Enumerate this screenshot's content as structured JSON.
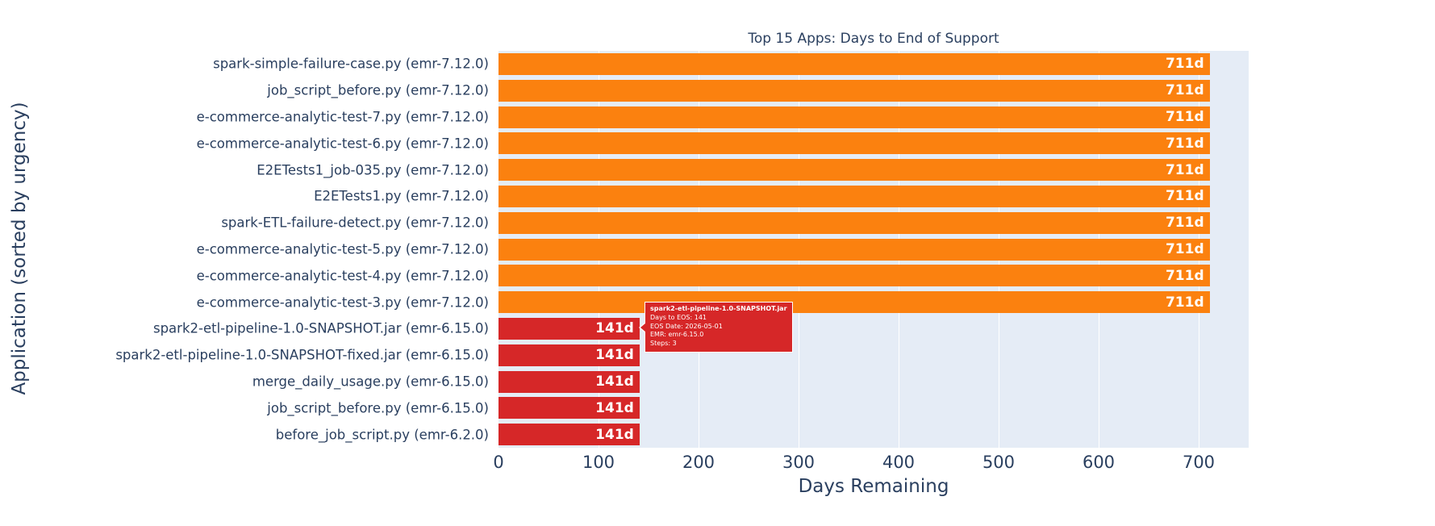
{
  "chart_data": {
    "type": "bar",
    "orientation": "horizontal",
    "title": "Top 15 Apps: Days to End of Support",
    "xlabel": "Days Remaining",
    "ylabel": "Application (sorted by urgency)",
    "xlim": [
      0,
      750
    ],
    "x_ticks": [
      0,
      100,
      200,
      300,
      400,
      500,
      600,
      700
    ],
    "grid": true,
    "legend": false,
    "bars": [
      {
        "category": "spark-simple-failure-case.py (emr-7.12.0)",
        "value": 711,
        "label": "711d",
        "color": "#fb810f"
      },
      {
        "category": "job_script_before.py (emr-7.12.0)",
        "value": 711,
        "label": "711d",
        "color": "#fb810f"
      },
      {
        "category": "e-commerce-analytic-test-7.py (emr-7.12.0)",
        "value": 711,
        "label": "711d",
        "color": "#fb810f"
      },
      {
        "category": "e-commerce-analytic-test-6.py (emr-7.12.0)",
        "value": 711,
        "label": "711d",
        "color": "#fb810f"
      },
      {
        "category": "E2ETests1_job-035.py (emr-7.12.0)",
        "value": 711,
        "label": "711d",
        "color": "#fb810f"
      },
      {
        "category": "E2ETests1.py (emr-7.12.0)",
        "value": 711,
        "label": "711d",
        "color": "#fb810f"
      },
      {
        "category": "spark-ETL-failure-detect.py (emr-7.12.0)",
        "value": 711,
        "label": "711d",
        "color": "#fb810f"
      },
      {
        "category": "e-commerce-analytic-test-5.py (emr-7.12.0)",
        "value": 711,
        "label": "711d",
        "color": "#fb810f"
      },
      {
        "category": "e-commerce-analytic-test-4.py (emr-7.12.0)",
        "value": 711,
        "label": "711d",
        "color": "#fb810f"
      },
      {
        "category": "e-commerce-analytic-test-3.py (emr-7.12.0)",
        "value": 711,
        "label": "711d",
        "color": "#fb810f"
      },
      {
        "category": "spark2-etl-pipeline-1.0-SNAPSHOT.jar (emr-6.15.0)",
        "value": 141,
        "label": "141d",
        "color": "#d62728"
      },
      {
        "category": "spark2-etl-pipeline-1.0-SNAPSHOT-fixed.jar (emr-6.15.0)",
        "value": 141,
        "label": "141d",
        "color": "#d62728"
      },
      {
        "category": "merge_daily_usage.py (emr-6.15.0)",
        "value": 141,
        "label": "141d",
        "color": "#d62728"
      },
      {
        "category": "job_script_before.py (emr-6.15.0)",
        "value": 141,
        "label": "141d",
        "color": "#d62728"
      },
      {
        "category": "before_job_script.py (emr-6.2.0)",
        "value": 141,
        "label": "141d",
        "color": "#d62728"
      }
    ]
  },
  "tooltip": {
    "title": "spark2-etl-pipeline-1.0-SNAPSHOT.jar",
    "lines": [
      "Days to EOS: 141",
      "EOS Date: 2026-05-01",
      "EMR: emr-6.15.0",
      "Steps: 3"
    ],
    "bg": "#d62728"
  },
  "colors": {
    "text": "#2a3f5f",
    "plot_bg": "#e5ecf6",
    "grid": "#ffffff",
    "orange": "#fb810f",
    "red": "#d62728"
  }
}
